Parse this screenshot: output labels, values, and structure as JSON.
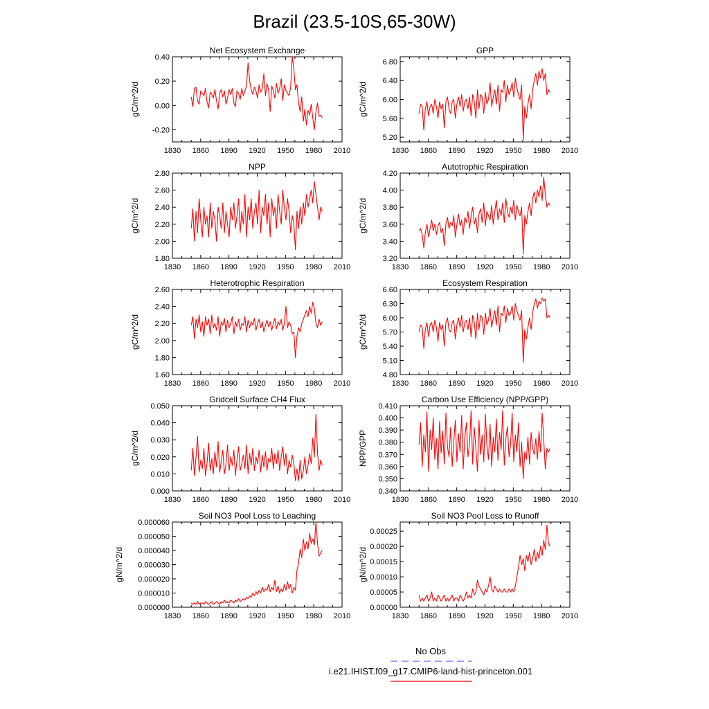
{
  "page": {
    "title": "Brazil (23.5-10S,65-30W)",
    "legend": {
      "entries": [
        {
          "label": "No Obs",
          "color": "#6666ff",
          "style": "dashed"
        },
        {
          "label": "i.e21.IHIST.f09_g17.CMIP6-land-hist-princeton.001",
          "color": "#ff0000",
          "style": "solid"
        }
      ]
    },
    "colors": {
      "series": "#ff0000",
      "axis": "#000000"
    }
  },
  "chart_data": [
    {
      "type": "line",
      "title": "Net Ecosystem Exchange",
      "ylabel": "gC/m^2/d",
      "xlim": [
        1830,
        2010
      ],
      "ylim": [
        -0.3,
        0.4
      ],
      "xticks": [
        "1830",
        "1860",
        "1890",
        "1920",
        "1950",
        "1980",
        "2010"
      ],
      "yticks": [
        "-0.20",
        "0.00",
        "0.20",
        "0.40"
      ],
      "ytick_values": [
        -0.2,
        0.0,
        0.2,
        0.4
      ],
      "x_start": 1850,
      "x_end": 1989,
      "y": [
        0.07,
        -0.01,
        0.14,
        0.15,
        0.04,
        0.01,
        0.12,
        0.1,
        0.08,
        0.14,
        0.03,
        -0.02,
        0.11,
        0.09,
        0.06,
        0.13,
        0.04,
        -0.03,
        0.1,
        0.13,
        0.07,
        0.12,
        0.01,
        0.06,
        0.13,
        0.09,
        0.14,
        0.02,
        -0.01,
        0.12,
        0.1,
        0.05,
        0.14,
        0.08,
        0.12,
        0.16,
        0.35,
        0.2,
        0.13,
        0.09,
        0.15,
        0.12,
        0.06,
        0.17,
        0.11,
        0.14,
        0.26,
        0.08,
        0.18,
        0.13,
        -0.05,
        0.16,
        0.12,
        0.06,
        0.18,
        0.1,
        0.14,
        0.22,
        0.04,
        0.17,
        0.12,
        0.1,
        0.08,
        0.15,
        0.4,
        0.3,
        0.13,
        0.17,
        0.02,
        -0.05,
        0.07,
        -0.13,
        -0.03,
        -0.16,
        -0.04,
        -0.08,
        0.01,
        -0.1,
        -0.2,
        -0.05,
        0.02,
        -0.09,
        -0.08,
        -0.1
      ]
    },
    {
      "type": "line",
      "title": "GPP",
      "ylabel": "gC/m^2/d",
      "xlim": [
        1830,
        2010
      ],
      "ylim": [
        5.1,
        6.9
      ],
      "xticks": [
        "1830",
        "1860",
        "1890",
        "1920",
        "1950",
        "1980",
        "2010"
      ],
      "yticks": [
        "5.20",
        "5.60",
        "6.00",
        "6.40",
        "6.80"
      ],
      "ytick_values": [
        5.2,
        5.6,
        6.0,
        6.4,
        6.8
      ],
      "x_start": 1850,
      "x_end": 1989,
      "y": [
        5.7,
        5.9,
        5.85,
        5.35,
        5.8,
        5.95,
        5.65,
        5.85,
        5.9,
        5.7,
        6.0,
        5.85,
        5.6,
        5.95,
        5.8,
        5.9,
        5.4,
        5.95,
        6.05,
        5.8,
        5.7,
        5.95,
        6.0,
        5.6,
        5.9,
        6.05,
        5.85,
        6.1,
        5.75,
        5.95,
        6.0,
        5.8,
        6.05,
        5.65,
        6.1,
        5.95,
        5.6,
        6.2,
        5.8,
        6.1,
        6.05,
        5.7,
        6.15,
        5.9,
        6.0,
        6.35,
        5.85,
        6.05,
        6.2,
        5.9,
        6.3,
        5.75,
        6.2,
        6.15,
        6.4,
        5.95,
        6.3,
        6.1,
        6.2,
        6.35,
        6.05,
        6.45,
        6.25,
        6.1,
        6.0,
        6.3,
        5.15,
        5.85,
        5.6,
        5.9,
        6.1,
        5.8,
        6.2,
        6.4,
        6.55,
        6.3,
        6.6,
        6.45,
        6.65,
        6.4,
        6.55,
        6.1,
        6.2,
        6.15
      ]
    },
    {
      "type": "line",
      "title": "NPP",
      "ylabel": "gC/m^2/d",
      "xlim": [
        1830,
        2010
      ],
      "ylim": [
        1.8,
        2.8
      ],
      "xticks": [
        "1830",
        "1860",
        "1890",
        "1920",
        "1950",
        "1980",
        "2010"
      ],
      "yticks": [
        "1.80",
        "2.00",
        "2.20",
        "2.40",
        "2.60",
        "2.80"
      ],
      "ytick_values": [
        1.8,
        2.0,
        2.2,
        2.4,
        2.6,
        2.8
      ],
      "x_start": 1850,
      "x_end": 1989,
      "y": [
        2.15,
        2.38,
        2.0,
        2.35,
        2.1,
        2.5,
        2.25,
        2.05,
        2.4,
        2.2,
        2.3,
        2.05,
        2.45,
        2.15,
        2.35,
        2.25,
        2.0,
        2.4,
        2.3,
        2.15,
        2.45,
        2.1,
        2.35,
        2.2,
        2.05,
        2.4,
        2.25,
        2.45,
        2.15,
        2.3,
        2.5,
        2.1,
        2.35,
        2.2,
        2.55,
        2.05,
        2.4,
        2.25,
        2.5,
        2.15,
        2.35,
        2.45,
        2.2,
        2.6,
        2.1,
        2.4,
        2.3,
        2.55,
        2.2,
        2.45,
        2.05,
        2.5,
        2.3,
        2.4,
        2.15,
        2.55,
        2.35,
        2.2,
        2.6,
        2.4,
        2.25,
        2.5,
        2.35,
        2.1,
        2.3,
        2.2,
        1.9,
        2.35,
        2.15,
        2.4,
        2.2,
        2.45,
        2.3,
        2.55,
        2.4,
        2.5,
        2.6,
        2.45,
        2.7,
        2.55,
        2.4,
        2.25,
        2.4,
        2.35
      ]
    },
    {
      "type": "line",
      "title": "Autotrophic Respiration",
      "ylabel": "gC/m^2/d",
      "xlim": [
        1830,
        2010
      ],
      "ylim": [
        3.2,
        4.2
      ],
      "xticks": [
        "1830",
        "1860",
        "1890",
        "1920",
        "1950",
        "1980",
        "2010"
      ],
      "yticks": [
        "3.20",
        "3.40",
        "3.60",
        "3.80",
        "4.00",
        "4.20"
      ],
      "ytick_values": [
        3.2,
        3.4,
        3.6,
        3.8,
        4.0,
        4.2
      ],
      "x_start": 1850,
      "x_end": 1989,
      "y": [
        3.52,
        3.55,
        3.48,
        3.32,
        3.5,
        3.6,
        3.45,
        3.55,
        3.65,
        3.52,
        3.6,
        3.48,
        3.58,
        3.62,
        3.5,
        3.55,
        3.35,
        3.6,
        3.68,
        3.55,
        3.62,
        3.58,
        3.7,
        3.45,
        3.6,
        3.72,
        3.58,
        3.65,
        3.48,
        3.68,
        3.62,
        3.75,
        3.55,
        3.7,
        3.8,
        3.6,
        3.68,
        3.5,
        3.72,
        3.78,
        3.62,
        3.85,
        3.58,
        3.75,
        3.7,
        3.65,
        3.82,
        3.6,
        3.75,
        3.88,
        3.65,
        3.78,
        3.7,
        3.85,
        3.62,
        3.9,
        3.75,
        3.68,
        3.8,
        3.72,
        3.88,
        3.65,
        3.82,
        3.75,
        3.7,
        3.8,
        3.25,
        3.7,
        3.6,
        3.75,
        3.85,
        3.7,
        3.9,
        3.98,
        3.85,
        4.0,
        3.92,
        4.05,
        3.88,
        4.15,
        3.95,
        3.8,
        3.85,
        3.82
      ]
    },
    {
      "type": "line",
      "title": "Heterotrophic Respiration",
      "ylabel": "gC/m^2/d",
      "xlim": [
        1830,
        2010
      ],
      "ylim": [
        1.6,
        2.6
      ],
      "xticks": [
        "1830",
        "1860",
        "1890",
        "1920",
        "1950",
        "1980",
        "2010"
      ],
      "yticks": [
        "1.60",
        "1.80",
        "2.00",
        "2.20",
        "2.40",
        "2.60"
      ],
      "ytick_values": [
        1.6,
        1.8,
        2.0,
        2.2,
        2.4,
        2.6
      ],
      "x_start": 1850,
      "x_end": 1989,
      "y": [
        2.18,
        2.28,
        2.02,
        2.25,
        2.15,
        2.3,
        2.1,
        2.22,
        2.05,
        2.28,
        2.18,
        2.25,
        2.08,
        2.3,
        2.15,
        2.2,
        2.12,
        2.28,
        2.05,
        2.22,
        2.18,
        2.26,
        2.1,
        2.24,
        2.15,
        2.2,
        2.28,
        2.08,
        2.22,
        2.16,
        2.25,
        2.12,
        2.2,
        2.18,
        2.28,
        2.1,
        2.24,
        2.15,
        2.22,
        2.18,
        2.26,
        2.12,
        2.2,
        2.25,
        2.15,
        2.22,
        2.1,
        2.18,
        2.24,
        2.16,
        2.22,
        2.12,
        2.2,
        2.26,
        2.14,
        2.22,
        2.18,
        2.25,
        2.12,
        2.2,
        2.4,
        2.15,
        2.22,
        2.18,
        2.08,
        2.1,
        1.8,
        2.05,
        2.15,
        2.1,
        2.2,
        2.25,
        2.3,
        2.35,
        2.28,
        2.4,
        2.32,
        2.45,
        2.38,
        2.2,
        2.15,
        2.25,
        2.18,
        2.22
      ]
    },
    {
      "type": "line",
      "title": "Ecosystem Respiration",
      "ylabel": "gC/m^2/d",
      "xlim": [
        1830,
        2010
      ],
      "ylim": [
        4.8,
        6.6
      ],
      "xticks": [
        "1830",
        "1860",
        "1890",
        "1920",
        "1950",
        "1980",
        "2010"
      ],
      "yticks": [
        "4.80",
        "5.10",
        "5.40",
        "5.70",
        "6.00",
        "6.30",
        "6.60"
      ],
      "ytick_values": [
        4.8,
        5.1,
        5.4,
        5.7,
        6.0,
        6.3,
        6.6
      ],
      "x_start": 1850,
      "x_end": 1989,
      "y": [
        5.7,
        5.85,
        5.8,
        5.35,
        5.75,
        5.9,
        5.6,
        5.85,
        5.9,
        5.7,
        5.95,
        5.8,
        5.5,
        5.9,
        5.75,
        5.85,
        5.4,
        5.9,
        6.0,
        5.75,
        5.7,
        5.9,
        5.95,
        5.55,
        5.85,
        6.0,
        5.8,
        6.05,
        5.7,
        5.9,
        5.95,
        5.75,
        6.0,
        5.6,
        6.05,
        5.9,
        5.55,
        6.1,
        5.75,
        6.05,
        6.0,
        5.65,
        6.1,
        5.85,
        5.95,
        6.2,
        5.8,
        6.0,
        6.15,
        5.85,
        6.25,
        5.7,
        6.1,
        6.05,
        6.25,
        5.9,
        6.2,
        6.05,
        6.1,
        6.25,
        5.95,
        6.3,
        6.15,
        6.05,
        5.95,
        6.15,
        5.05,
        5.75,
        5.55,
        5.8,
        6.0,
        5.75,
        6.1,
        6.3,
        6.4,
        6.2,
        6.35,
        6.3,
        6.42,
        6.35,
        6.4,
        6.0,
        6.05,
        6.0
      ]
    },
    {
      "type": "line",
      "title": "Gridcell Surface CH4 Flux",
      "ylabel": "gC/m^2/d",
      "xlim": [
        1830,
        2010
      ],
      "ylim": [
        0.0,
        0.05
      ],
      "xticks": [
        "1830",
        "1860",
        "1890",
        "1920",
        "1950",
        "1980",
        "2010"
      ],
      "yticks": [
        "0.000",
        "0.010",
        "0.020",
        "0.030",
        "0.040",
        "0.050"
      ],
      "ytick_values": [
        0.0,
        0.01,
        0.02,
        0.03,
        0.04,
        0.05
      ],
      "x_start": 1850,
      "x_end": 1989,
      "y": [
        0.012,
        0.025,
        0.009,
        0.02,
        0.032,
        0.011,
        0.018,
        0.013,
        0.025,
        0.009,
        0.016,
        0.028,
        0.012,
        0.019,
        0.01,
        0.023,
        0.014,
        0.029,
        0.011,
        0.017,
        0.024,
        0.01,
        0.016,
        0.027,
        0.012,
        0.02,
        0.015,
        0.024,
        0.009,
        0.018,
        0.026,
        0.012,
        0.016,
        0.021,
        0.013,
        0.027,
        0.01,
        0.022,
        0.015,
        0.025,
        0.012,
        0.02,
        0.016,
        0.024,
        0.011,
        0.021,
        0.014,
        0.023,
        0.012,
        0.019,
        0.017,
        0.025,
        0.013,
        0.022,
        0.016,
        0.024,
        0.012,
        0.02,
        0.026,
        0.015,
        0.022,
        0.01,
        0.018,
        0.014,
        0.021,
        0.016,
        0.006,
        0.013,
        0.006,
        0.018,
        0.007,
        0.012,
        0.02,
        0.01,
        0.015,
        0.022,
        0.016,
        0.031,
        0.02,
        0.045,
        0.022,
        0.012,
        0.018,
        0.015
      ]
    },
    {
      "type": "line",
      "title": "Carbon Use Efficiency (NPP/GPP)",
      "ylabel": "NPP/GPP",
      "xlim": [
        1830,
        2010
      ],
      "ylim": [
        0.34,
        0.41
      ],
      "xticks": [
        "1830",
        "1860",
        "1890",
        "1920",
        "1950",
        "1980",
        "2010"
      ],
      "yticks": [
        "0.340",
        "0.350",
        "0.360",
        "0.370",
        "0.380",
        "0.390",
        "0.400",
        "0.410"
      ],
      "ytick_values": [
        0.34,
        0.35,
        0.36,
        0.37,
        0.38,
        0.39,
        0.4,
        0.41
      ],
      "x_start": 1850,
      "x_end": 1989,
      "y": [
        0.378,
        0.396,
        0.36,
        0.386,
        0.372,
        0.405,
        0.356,
        0.39,
        0.374,
        0.4,
        0.366,
        0.383,
        0.358,
        0.397,
        0.371,
        0.389,
        0.362,
        0.404,
        0.376,
        0.368,
        0.392,
        0.36,
        0.381,
        0.398,
        0.364,
        0.387,
        0.372,
        0.402,
        0.358,
        0.384,
        0.396,
        0.368,
        0.379,
        0.406,
        0.362,
        0.392,
        0.375,
        0.356,
        0.398,
        0.37,
        0.386,
        0.364,
        0.403,
        0.378,
        0.366,
        0.395,
        0.36,
        0.384,
        0.372,
        0.399,
        0.365,
        0.388,
        0.374,
        0.406,
        0.361,
        0.383,
        0.393,
        0.368,
        0.378,
        0.404,
        0.364,
        0.386,
        0.372,
        0.396,
        0.36,
        0.38,
        0.35,
        0.372,
        0.366,
        0.384,
        0.362,
        0.388,
        0.375,
        0.37,
        0.383,
        0.366,
        0.389,
        0.372,
        0.404,
        0.382,
        0.358,
        0.375,
        0.372,
        0.375
      ]
    },
    {
      "type": "line",
      "title": "Soil NO3 Pool Loss to Leaching",
      "ylabel": "gN/m^2/d",
      "xlim": [
        1830,
        2010
      ],
      "ylim": [
        0.0,
        6e-05
      ],
      "xticks": [
        "1830",
        "1860",
        "1890",
        "1920",
        "1950",
        "1980",
        "2010"
      ],
      "yticks": [
        "0.000000",
        "0.000010",
        "0.000020",
        "0.000030",
        "0.000040",
        "0.000050",
        "0.000060"
      ],
      "ytick_values": [
        0.0,
        1e-05,
        2e-05,
        3e-05,
        4e-05,
        5e-05,
        6e-05
      ],
      "x_start": 1850,
      "x_end": 1989,
      "y": [
        3e-06,
        2e-06,
        3e-06,
        2e-06,
        4e-06,
        2e-06,
        3e-06,
        3e-06,
        2e-06,
        4e-06,
        3e-06,
        2e-06,
        3e-06,
        4e-06,
        2e-06,
        3e-06,
        4e-06,
        3e-06,
        2e-06,
        4e-06,
        3e-06,
        5e-06,
        3e-06,
        4e-06,
        3e-06,
        5e-06,
        4e-06,
        3e-06,
        5e-06,
        4e-06,
        6e-06,
        4e-06,
        5e-06,
        6e-06,
        5e-06,
        7e-06,
        6e-06,
        8e-06,
        7e-06,
        1e-05,
        8e-06,
        1.1e-05,
        9e-06,
        1.2e-05,
        1e-05,
        1.4e-05,
        1.1e-05,
        1.3e-05,
        1.2e-05,
        1.6e-05,
        1.1e-05,
        1.4e-05,
        1.2e-05,
        1.9e-05,
        1.1e-05,
        1.5e-05,
        1e-05,
        1.3e-05,
        1.1e-05,
        1.6e-05,
        1.2e-05,
        1.8e-05,
        1.3e-05,
        1.6e-05,
        1e-05,
        1.4e-05,
        1.2e-05,
        2.6e-05,
        3.1e-05,
        4.1e-05,
        3.5e-05,
        4.8e-05,
        4e-05,
        4.6e-05,
        4.1e-05,
        5.2e-05,
        4.5e-05,
        4.8e-05,
        4.4e-05,
        6e-05,
        4.5e-05,
        3.6e-05,
        3.8e-05,
        4e-05
      ]
    },
    {
      "type": "line",
      "title": "Soil NO3 Pool Loss to Runoff",
      "ylabel": "gN/m^2/d",
      "xlim": [
        1830,
        2010
      ],
      "ylim": [
        0.0,
        0.00028
      ],
      "xticks": [
        "1830",
        "1860",
        "1890",
        "1920",
        "1950",
        "1980",
        "2010"
      ],
      "yticks": [
        "0.00000",
        "0.00005",
        "0.00010",
        "0.00015",
        "0.00020",
        "0.00025"
      ],
      "ytick_values": [
        0.0,
        5e-05,
        0.0001,
        0.00015,
        0.0002,
        0.00025
      ],
      "x_start": 1850,
      "x_end": 1989,
      "y": [
        4e-05,
        2e-05,
        3e-05,
        2e-05,
        3e-05,
        4e-05,
        2e-05,
        3e-05,
        5e-05,
        2e-05,
        3e-05,
        2e-05,
        4e-05,
        3e-05,
        2e-05,
        3e-05,
        4e-05,
        2e-05,
        3e-05,
        2e-05,
        3e-05,
        4e-05,
        2e-05,
        3e-05,
        3e-05,
        2e-05,
        4e-05,
        3e-05,
        2e-05,
        3e-05,
        5e-05,
        3e-05,
        4e-05,
        3e-05,
        6e-05,
        4e-05,
        5e-05,
        9e-05,
        7e-05,
        6e-05,
        5e-05,
        4e-05,
        6e-05,
        5e-05,
        7e-05,
        0.0001,
        6e-05,
        5e-05,
        7e-05,
        6e-05,
        5e-05,
        6e-05,
        5e-05,
        5e-05,
        6e-05,
        5e-05,
        5e-05,
        6e-05,
        5e-05,
        6e-05,
        5e-05,
        7e-05,
        0.0001,
        0.00013,
        0.00017,
        0.00014,
        0.00016,
        0.00012,
        0.00017,
        0.00015,
        0.00018,
        0.00014,
        0.00016,
        0.00019,
        0.00015,
        0.00018,
        0.00016,
        0.0002,
        0.00017,
        0.00022,
        0.00019,
        0.00027,
        0.00021,
        0.0002
      ]
    }
  ]
}
